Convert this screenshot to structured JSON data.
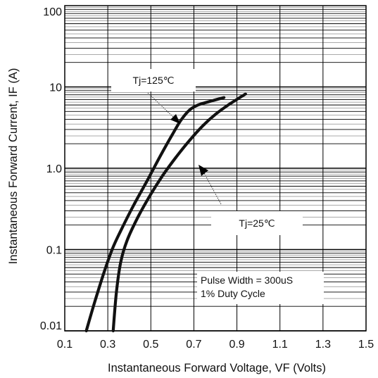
{
  "chart_data": {
    "type": "line",
    "xlabel": "Instantaneous Forward Voltage, VF (Volts)",
    "ylabel": "Instantaneous Forward Current, IF (A)",
    "xlim": [
      0.1,
      1.5
    ],
    "ylim": [
      0.01,
      100
    ],
    "yscale": "log",
    "grid": true,
    "x_ticks": [
      0.1,
      0.3,
      0.5,
      0.7,
      0.9,
      1.1,
      1.3,
      1.5
    ],
    "x_tick_labels": [
      "0.1",
      "0.3",
      "0.5",
      "0.7",
      "0.9",
      "1.1",
      "1.3",
      "1.5"
    ],
    "y_ticks": [
      0.01,
      0.1,
      1,
      10,
      100
    ],
    "y_tick_labels": [
      "0.01",
      "0.1",
      "1.0",
      "10",
      "100"
    ],
    "series": [
      {
        "name": "Tj=125℃",
        "x": [
          0.2,
          0.24,
          0.28,
          0.32,
          0.36,
          0.42,
          0.48,
          0.54,
          0.6,
          0.64,
          0.68,
          0.72,
          0.78,
          0.84
        ],
        "y": [
          0.01,
          0.023,
          0.05,
          0.1,
          0.17,
          0.35,
          0.68,
          1.35,
          2.6,
          3.9,
          5.2,
          6.0,
          6.7,
          7.4
        ]
      },
      {
        "name": "Tj=25℃",
        "x": [
          0.325,
          0.34,
          0.36,
          0.39,
          0.44,
          0.5,
          0.56,
          0.62,
          0.68,
          0.74,
          0.8,
          0.86,
          0.94
        ],
        "y": [
          0.01,
          0.03,
          0.07,
          0.13,
          0.25,
          0.48,
          0.85,
          1.4,
          2.2,
          3.3,
          4.6,
          6.0,
          8.2
        ]
      }
    ],
    "annotations": [
      {
        "label": "Tj=125℃",
        "series": "Tj=125℃"
      },
      {
        "label": "Tj=25℃",
        "series": "Tj=25℃"
      },
      {
        "lines": [
          "Pulse Width = 300uS",
          "1% Duty Cycle"
        ]
      }
    ]
  }
}
